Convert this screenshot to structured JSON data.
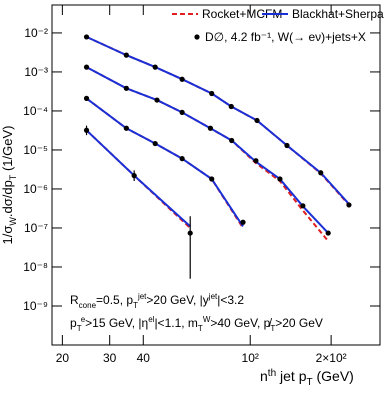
{
  "chart_data": {
    "type": "line",
    "xlabel": [
      {
        "t": "n"
      },
      {
        "t": "th",
        "s": "sup"
      },
      {
        "t": " jet p"
      },
      {
        "t": "T",
        "s": "sub"
      },
      {
        "t": " (GeV)"
      }
    ],
    "ylabel": [
      {
        "t": "1/σ"
      },
      {
        "t": "W",
        "s": "sub"
      },
      {
        "t": ".dσ/dp"
      },
      {
        "t": "T",
        "s": "sub"
      },
      {
        "t": " (1/GeV)"
      }
    ],
    "xlog": true,
    "ylog": true,
    "xlim": [
      18.3,
      304
    ],
    "ylim": [
      1e-10,
      0.052
    ],
    "xticks": [
      20,
      30,
      40,
      {
        "value": 100,
        "label": "10²"
      },
      {
        "value": 200,
        "label": "2×10²"
      }
    ],
    "yticks": [
      {
        "value": 1e-09,
        "label": "10⁻⁹"
      },
      {
        "value": 1e-08,
        "label": "10⁻⁸"
      },
      {
        "value": 1e-07,
        "label": "10⁻⁷"
      },
      {
        "value": 1e-06,
        "label": "10⁻⁶"
      },
      {
        "value": 1e-05,
        "label": "10⁻⁵"
      },
      {
        "value": 0.0001,
        "label": "10⁻⁴"
      },
      {
        "value": 0.001,
        "label": "10⁻³"
      },
      {
        "value": 0.01,
        "label": "10⁻²"
      }
    ],
    "series": [
      {
        "name": "Rocket+MCFM",
        "color": "#e02020",
        "style": "dashed",
        "curves": [
          {
            "x": [
              24.6,
              34.6,
              44.3,
              55.8,
              71.9,
              85,
              106,
              137,
              183,
              233
            ],
            "values": [
              0.0079,
              0.0027,
              0.00133,
              0.00065,
              0.00028,
              0.00013,
              5.7e-05,
              1.3e-05,
              2.5e-06,
              3.9e-07
            ]
          },
          {
            "x": [
              24.6,
              34.6,
              45.0,
              55.8,
              71.1,
              85.3,
              105,
              129,
              157,
              195
            ],
            "values": [
              0.00133,
              0.00038,
              0.00019,
              9.2e-05,
              3.6e-05,
              1.75e-05,
              4.6e-06,
              1.6e-06,
              2.8e-07,
              4.6e-08
            ]
          },
          {
            "x": [
              24.6,
              34.6,
              44.3,
              55.8,
              71.9,
              94
            ],
            "values": [
              0.00021,
              3.6e-05,
              1.46e-05,
              6e-06,
              1.8e-06,
              1e-07
            ]
          },
          {
            "x": [
              24.6,
              37,
              59.8
            ],
            "values": [
              3.2e-05,
              2.2e-06,
              1e-07
            ]
          }
        ]
      },
      {
        "name": "Blackhat+Sherpa",
        "color": "#1a2fd6",
        "style": "solid",
        "curves": [
          {
            "x": [
              24.6,
              34.6,
              44.3,
              55.8,
              71.9,
              85,
              106,
              137,
              183,
              233
            ],
            "values": [
              0.0079,
              0.0027,
              0.00133,
              0.00065,
              0.00028,
              0.00013,
              5.7e-05,
              1.3e-05,
              2.6e-06,
              4.1e-07
            ]
          },
          {
            "x": [
              24.6,
              34.6,
              45.0,
              55.8,
              71.1,
              85.3,
              105,
              129,
              157,
              195
            ],
            "values": [
              0.00133,
              0.00038,
              0.00019,
              9.2e-05,
              3.6e-05,
              1.75e-05,
              5e-06,
              1.8e-06,
              3.6e-07,
              7.4e-08
            ]
          },
          {
            "x": [
              24.6,
              34.6,
              44.3,
              55.8,
              71.9,
              94
            ],
            "values": [
              0.00021,
              3.6e-05,
              1.46e-05,
              6e-06,
              1.8e-06,
              1.1e-07
            ]
          },
          {
            "x": [
              24.6,
              37,
              59.8
            ],
            "values": [
              3.2e-05,
              2.2e-06,
              1.1e-07
            ]
          }
        ]
      },
      {
        "name": "D∅, 4.2 fb⁻¹, W(→ eν)+jets+X",
        "color": "#000000",
        "style": "points",
        "curves": [
          {
            "x": [
              24.6,
              34.6,
              44.3,
              55.8,
              71.9,
              85,
              106,
              137,
              183,
              233
            ],
            "values": [
              0.0079,
              0.0027,
              0.00133,
              0.00065,
              0.00028,
              0.00013,
              5.7e-05,
              1.3e-05,
              2.6e-06,
              3.9e-07
            ]
          },
          {
            "x": [
              24.6,
              34.6,
              45.0,
              55.8,
              71.1,
              85.3,
              105,
              129,
              157,
              195
            ],
            "values": [
              0.00133,
              0.00038,
              0.00019,
              9.2e-05,
              3.6e-05,
              1.75e-05,
              5.3e-06,
              1.8e-06,
              3.7e-07,
              7.4e-08
            ]
          },
          {
            "x": [
              24.6,
              34.6,
              44.3,
              55.8,
              71.9,
              94
            ],
            "values": [
              0.00021,
              3.6e-05,
              1.46e-05,
              6e-06,
              1.8e-06,
              1.4e-07
            ]
          },
          {
            "x": [
              24.6,
              37,
              59.8
            ],
            "values": [
              3.2e-05,
              2.2e-06,
              7.4e-08
            ],
            "err_lo": [
              2.4e-05,
              1.6e-06,
              5e-09
            ],
            "err_hi": [
              4.2e-05,
              3e-06,
              2e-07
            ]
          }
        ]
      }
    ],
    "annotations": [
      [
        {
          "t": "R"
        },
        {
          "t": "cone",
          "s": "sub"
        },
        {
          "t": "=0.5, p"
        },
        {
          "t": "T",
          "s": "sub"
        },
        {
          "t": "jet",
          "s": "sup"
        },
        {
          "t": ">20 GeV, |y"
        },
        {
          "t": "jet",
          "s": "sup"
        },
        {
          "t": "|<3.2"
        }
      ],
      [
        {
          "t": "p"
        },
        {
          "t": "T",
          "s": "sub"
        },
        {
          "t": "e",
          "s": "sup"
        },
        {
          "t": ">15 GeV, |η"
        },
        {
          "t": "el",
          "s": "sup"
        },
        {
          "t": "|<1.1, m"
        },
        {
          "t": "T",
          "s": "sub"
        },
        {
          "t": "W",
          "s": "sup"
        },
        {
          "t": ">40 GeV, p̸"
        },
        {
          "t": "T",
          "s": "sub"
        },
        {
          "t": ">20 GeV"
        }
      ]
    ]
  }
}
